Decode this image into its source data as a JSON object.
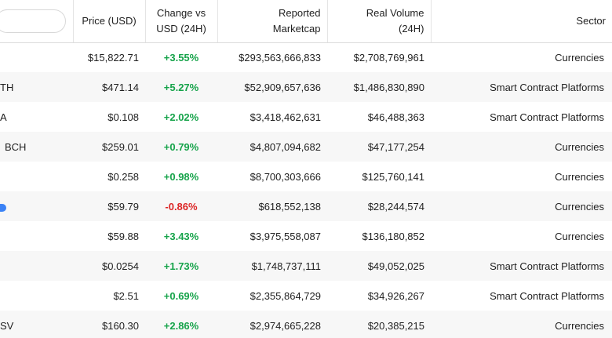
{
  "header": {
    "search_placeholder": "",
    "columns": {
      "price": "Price (USD)",
      "change_line1": "Change vs",
      "change_line2": "USD (24H)",
      "cap_line1": "Reported",
      "cap_line2": "Marketcap",
      "vol_line1": "Real Volume",
      "vol_line2": "(24H)",
      "sector": "Sector"
    }
  },
  "colors": {
    "positive": "#16a34a",
    "negative": "#dc2626"
  },
  "rows": [
    {
      "name": "",
      "icon": "",
      "price": "$15,822.71",
      "change": "+3.55%",
      "direction": "up",
      "marketcap": "$293,563,666,833",
      "volume": "$2,708,769,961",
      "sector": "Currencies"
    },
    {
      "name": "TH",
      "icon": "",
      "price": "$471.14",
      "change": "+5.27%",
      "direction": "up",
      "marketcap": "$52,909,657,636",
      "volume": "$1,486,830,890",
      "sector": "Smart Contract Platforms"
    },
    {
      "name": "A",
      "icon": "",
      "price": "$0.108",
      "change": "+2.02%",
      "direction": "up",
      "marketcap": "$3,418,462,631",
      "volume": "$46,488,363",
      "sector": "Smart Contract Platforms"
    },
    {
      "name": "BCH",
      "icon": "",
      "price": "$259.01",
      "change": "+0.79%",
      "direction": "up",
      "marketcap": "$4,807,094,682",
      "volume": "$47,177,254",
      "sector": "Currencies"
    },
    {
      "name": "",
      "icon": "",
      "price": "$0.258",
      "change": "+0.98%",
      "direction": "up",
      "marketcap": "$8,700,303,666",
      "volume": "$125,760,141",
      "sector": "Currencies"
    },
    {
      "name": "",
      "icon": "shield-icon",
      "price": "$59.79",
      "change": "-0.86%",
      "direction": "down",
      "marketcap": "$618,552,138",
      "volume": "$28,244,574",
      "sector": "Currencies"
    },
    {
      "name": "",
      "icon": "",
      "price": "$59.88",
      "change": "+3.43%",
      "direction": "up",
      "marketcap": "$3,975,558,087",
      "volume": "$136,180,852",
      "sector": "Currencies"
    },
    {
      "name": "",
      "icon": "",
      "price": "$0.0254",
      "change": "+1.73%",
      "direction": "up",
      "marketcap": "$1,748,737,111",
      "volume": "$49,052,025",
      "sector": "Smart Contract Platforms"
    },
    {
      "name": "",
      "icon": "",
      "price": "$2.51",
      "change": "+0.69%",
      "direction": "up",
      "marketcap": "$2,355,864,729",
      "volume": "$34,926,267",
      "sector": "Smart Contract Platforms"
    },
    {
      "name": "SV",
      "icon": "",
      "price": "$160.30",
      "change": "+2.86%",
      "direction": "up",
      "marketcap": "$2,974,665,228",
      "volume": "$20,385,215",
      "sector": "Currencies"
    }
  ]
}
